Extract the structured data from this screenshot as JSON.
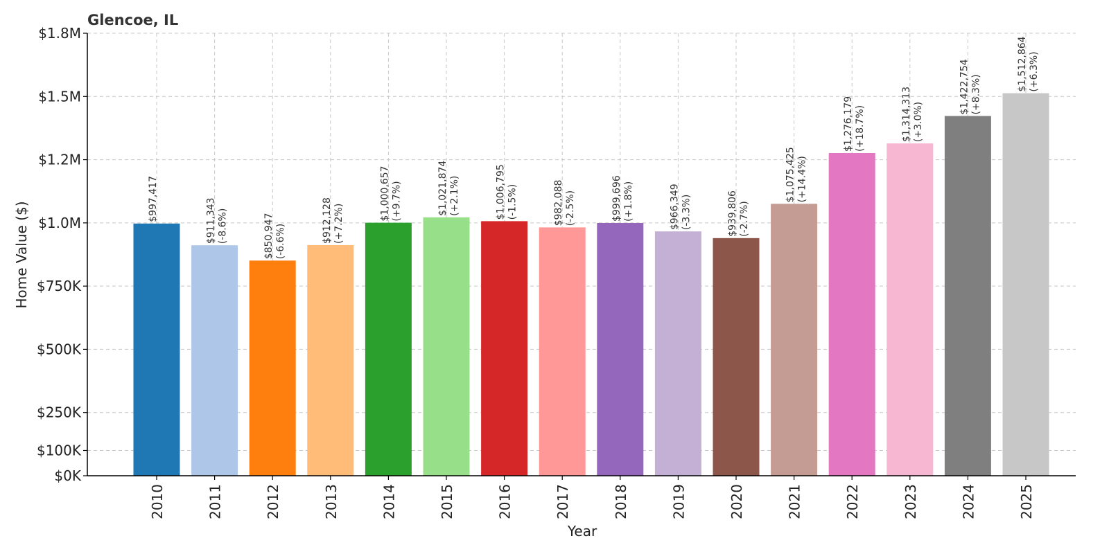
{
  "chart_data": {
    "type": "bar",
    "title": "Glencoe, IL",
    "xlabel": "Year",
    "ylabel": "Home Value ($)",
    "ylim": [
      0,
      1750000
    ],
    "grid": true,
    "yticks": [
      {
        "value": 0,
        "label": "$0K"
      },
      {
        "value": 100000,
        "label": "$100K"
      },
      {
        "value": 250000,
        "label": "$250K"
      },
      {
        "value": 500000,
        "label": "$500K"
      },
      {
        "value": 750000,
        "label": "$750K"
      },
      {
        "value": 1000000,
        "label": "$1.0M"
      },
      {
        "value": 1250000,
        "label": "$1.2M"
      },
      {
        "value": 1500000,
        "label": "$1.5M"
      },
      {
        "value": 1750000,
        "label": "$1.8M"
      }
    ],
    "categories": [
      "2010",
      "2011",
      "2012",
      "2013",
      "2014",
      "2015",
      "2016",
      "2017",
      "2018",
      "2019",
      "2020",
      "2021",
      "2022",
      "2023",
      "2024",
      "2025"
    ],
    "values": [
      997417,
      911343,
      850947,
      912128,
      1000657,
      1021874,
      1006795,
      982088,
      999696,
      966349,
      939806,
      1075425,
      1276179,
      1314313,
      1422754,
      1512864
    ],
    "value_labels": [
      "$997,417",
      "$911,343",
      "$850,947",
      "$912,128",
      "$1,000,657",
      "$1,021,874",
      "$1,006,795",
      "$982,088",
      "$999,696",
      "$966,349",
      "$939,806",
      "$1,075,425",
      "$1,276,179",
      "$1,314,313",
      "$1,422,754",
      "$1,512,864"
    ],
    "change_labels": [
      "",
      "(-8.6%)",
      "(-6.6%)",
      "(+7.2%)",
      "(+9.7%)",
      "(+2.1%)",
      "(-1.5%)",
      "(-2.5%)",
      "(+1.8%)",
      "(-3.3%)",
      "(-2.7%)",
      "(+14.4%)",
      "(+18.7%)",
      "(+3.0%)",
      "(+8.3%)",
      "(+6.3%)"
    ],
    "colors": [
      "#1f77b4",
      "#aec7e8",
      "#ff7f0e",
      "#ffbb78",
      "#2ca02c",
      "#98df8a",
      "#d62728",
      "#ff9896",
      "#9467bd",
      "#c5b0d5",
      "#8c564b",
      "#c49c94",
      "#e377c2",
      "#f7b6d2",
      "#7f7f7f",
      "#c7c7c7"
    ]
  }
}
